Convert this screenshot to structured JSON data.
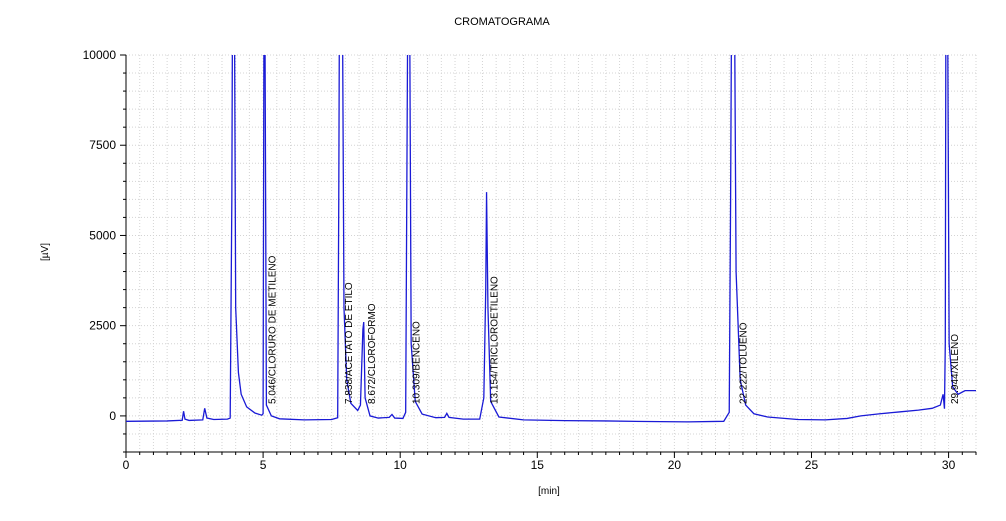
{
  "chart_data": {
    "type": "line",
    "title": "CROMATOGRAMA",
    "xlabel": "[min]",
    "ylabel": "[µV]",
    "xlim": [
      0,
      31
    ],
    "ylim": [
      -1000,
      10000
    ],
    "x_ticks": [
      0,
      5,
      10,
      15,
      20,
      25,
      30
    ],
    "y_ticks": [
      0,
      2500,
      5000,
      7500,
      10000
    ],
    "x_minor_step": 0.5,
    "y_minor_step": 500,
    "grid": true,
    "line_color": "#1a1ad6",
    "series": [
      {
        "points": [
          [
            0,
            -150
          ],
          [
            1.5,
            -140
          ],
          [
            2.05,
            -120
          ],
          [
            2.1,
            130
          ],
          [
            2.15,
            -90
          ],
          [
            2.3,
            -125
          ],
          [
            2.8,
            -110
          ],
          [
            2.87,
            210
          ],
          [
            2.95,
            -60
          ],
          [
            3.2,
            -100
          ],
          [
            3.7,
            -90
          ],
          [
            3.8,
            -60
          ],
          [
            3.86,
            6000
          ],
          [
            3.88,
            10500
          ],
          [
            3.96,
            10500
          ],
          [
            4.0,
            3000
          ],
          [
            4.1,
            1200
          ],
          [
            4.2,
            600
          ],
          [
            4.4,
            250
          ],
          [
            4.7,
            80
          ],
          [
            4.95,
            20
          ],
          [
            5.0,
            60
          ],
          [
            5.03,
            10500
          ],
          [
            5.07,
            10500
          ],
          [
            5.12,
            300
          ],
          [
            5.3,
            0
          ],
          [
            5.6,
            -80
          ],
          [
            6.5,
            -110
          ],
          [
            7.5,
            -100
          ],
          [
            7.72,
            -50
          ],
          [
            7.76,
            6000
          ],
          [
            7.78,
            10500
          ],
          [
            7.9,
            10500
          ],
          [
            7.95,
            3000
          ],
          [
            8.05,
            1000
          ],
          [
            8.2,
            350
          ],
          [
            8.45,
            150
          ],
          [
            8.55,
            300
          ],
          [
            8.64,
            2400
          ],
          [
            8.67,
            2600
          ],
          [
            8.72,
            500
          ],
          [
            8.9,
            0
          ],
          [
            9.2,
            -60
          ],
          [
            9.6,
            -40
          ],
          [
            9.7,
            40
          ],
          [
            9.8,
            -60
          ],
          [
            10.1,
            -70
          ],
          [
            10.2,
            100
          ],
          [
            10.27,
            10500
          ],
          [
            10.35,
            10500
          ],
          [
            10.4,
            2000
          ],
          [
            10.55,
            400
          ],
          [
            10.8,
            50
          ],
          [
            11.3,
            -50
          ],
          [
            11.62,
            -40
          ],
          [
            11.7,
            70
          ],
          [
            11.78,
            -40
          ],
          [
            12.3,
            -90
          ],
          [
            12.9,
            -90
          ],
          [
            13.05,
            500
          ],
          [
            13.12,
            3500
          ],
          [
            13.15,
            6200
          ],
          [
            13.2,
            3000
          ],
          [
            13.3,
            400
          ],
          [
            13.6,
            -30
          ],
          [
            14.5,
            -110
          ],
          [
            16,
            -130
          ],
          [
            17.5,
            -140
          ],
          [
            19,
            -155
          ],
          [
            20.5,
            -165
          ],
          [
            21.8,
            -150
          ],
          [
            22.0,
            100
          ],
          [
            22.05,
            6000
          ],
          [
            22.08,
            10500
          ],
          [
            22.2,
            10500
          ],
          [
            22.25,
            4000
          ],
          [
            22.4,
            1000
          ],
          [
            22.6,
            300
          ],
          [
            22.9,
            60
          ],
          [
            23.4,
            -30
          ],
          [
            24.5,
            -100
          ],
          [
            25.5,
            -110
          ],
          [
            26.3,
            -70
          ],
          [
            26.8,
            0
          ],
          [
            27.5,
            60
          ],
          [
            28.2,
            110
          ],
          [
            28.9,
            160
          ],
          [
            29.4,
            210
          ],
          [
            29.7,
            300
          ],
          [
            29.8,
            600
          ],
          [
            29.85,
            200
          ],
          [
            29.88,
            2000
          ],
          [
            29.9,
            10500
          ],
          [
            29.97,
            10500
          ],
          [
            30.02,
            2000
          ],
          [
            30.15,
            800
          ],
          [
            30.35,
            600
          ],
          [
            30.6,
            700
          ],
          [
            31.0,
            700
          ]
        ]
      }
    ],
    "annotations": [
      {
        "x": 5.046,
        "label": "5.046/CLORURO DE METILENO"
      },
      {
        "x": 7.838,
        "label": "7.838/ACETATO DE ETILO"
      },
      {
        "x": 8.672,
        "label": "8.672/CLOROFORMO"
      },
      {
        "x": 10.309,
        "label": "10.309/BENCENO"
      },
      {
        "x": 13.154,
        "label": "13.154/TRICLOROETILENO"
      },
      {
        "x": 22.222,
        "label": "22.222/TOLUENO"
      },
      {
        "x": 29.944,
        "label": "29.944/XILENO"
      }
    ]
  }
}
